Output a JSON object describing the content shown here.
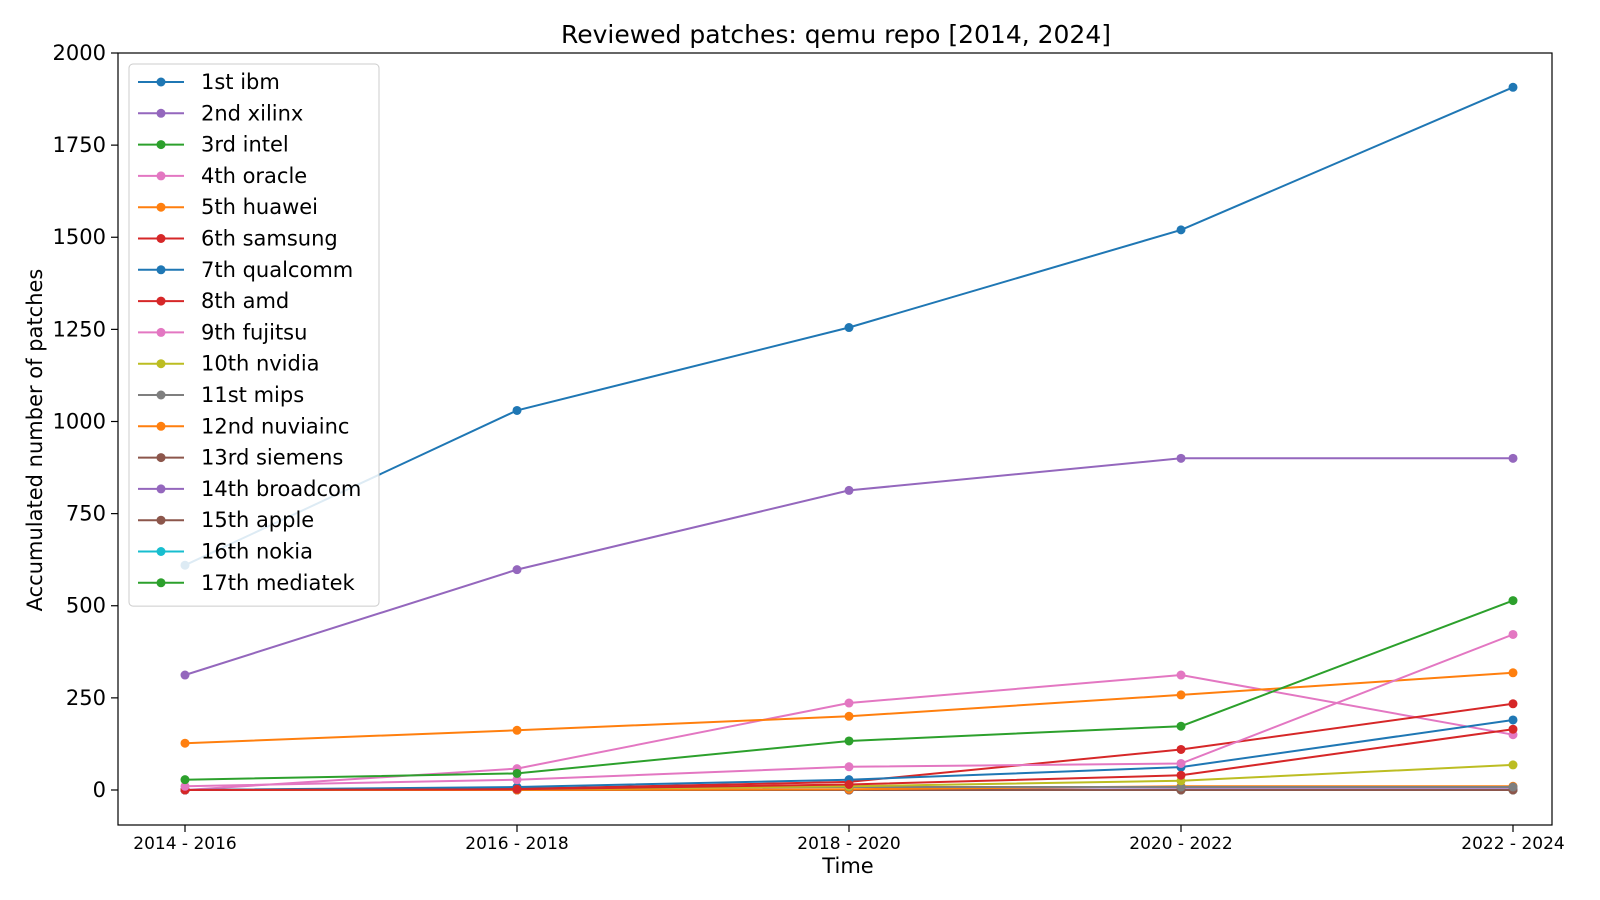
{
  "chart_data": {
    "type": "line",
    "title": "Reviewed patches: qemu repo [2014, 2024]",
    "xlabel": "Time",
    "ylabel": "Accumulated number of patches",
    "categories": [
      "2014 - 2016",
      "2016 - 2018",
      "2018 - 2020",
      "2020 - 2022",
      "2022 - 2024"
    ],
    "ylim": [
      -95,
      2000
    ],
    "yticks": [
      0,
      250,
      500,
      750,
      1000,
      1250,
      1500,
      1750,
      2000
    ],
    "grid": false,
    "legend_position": "upper-left",
    "series": [
      {
        "name": " 1st ibm",
        "color": "#1f77b4",
        "values": [
          610,
          1030,
          1255,
          1520,
          1907
        ]
      },
      {
        "name": " 2nd xilinx",
        "color": "#9467bd",
        "values": [
          312,
          598,
          813,
          900,
          900
        ]
      },
      {
        "name": " 3rd intel",
        "color": "#2ca02c",
        "values": [
          28,
          45,
          133,
          173,
          514
        ]
      },
      {
        "name": " 4th oracle",
        "color": "#e377c2",
        "values": [
          10,
          28,
          63,
          72,
          422
        ]
      },
      {
        "name": " 5th huawei",
        "color": "#ff7f0e",
        "values": [
          127,
          162,
          200,
          258,
          318
        ]
      },
      {
        "name": " 6th samsung",
        "color": "#d62728",
        "values": [
          0,
          2,
          15,
          40,
          165
        ]
      },
      {
        "name": " 7th qualcomm",
        "color": "#1f77b4",
        "values": [
          0,
          8,
          28,
          62,
          190
        ]
      },
      {
        "name": " 8th amd",
        "color": "#d62728",
        "values": [
          0,
          3,
          22,
          110,
          234
        ]
      },
      {
        "name": " 9th fujitsu",
        "color": "#e377c2",
        "values": [
          0,
          58,
          236,
          312,
          150
        ]
      },
      {
        "name": "10th nvidia",
        "color": "#bcbd22",
        "values": [
          0,
          2,
          10,
          25,
          68
        ]
      },
      {
        "name": "11st mips",
        "color": "#7f7f7f",
        "values": [
          0,
          5,
          8,
          8,
          8
        ]
      },
      {
        "name": "12nd nuviainc",
        "color": "#ff7f0e",
        "values": [
          0,
          0,
          2,
          10,
          10
        ]
      },
      {
        "name": "13rd siemens",
        "color": "#8c564b",
        "values": [
          0,
          0,
          0,
          0,
          0
        ]
      },
      {
        "name": "14th broadcom",
        "color": "#9467bd",
        "values": [
          0,
          0,
          0,
          2,
          2
        ]
      },
      {
        "name": "15th apple",
        "color": "#8c564b",
        "values": [
          0,
          0,
          0,
          0,
          0
        ]
      },
      {
        "name": "16th nokia",
        "color": "#17becf",
        "values": [
          0,
          0,
          0,
          0,
          0
        ]
      },
      {
        "name": "17th mediatek",
        "color": "#2ca02c",
        "values": [
          0,
          0,
          0,
          0,
          0
        ]
      }
    ]
  }
}
